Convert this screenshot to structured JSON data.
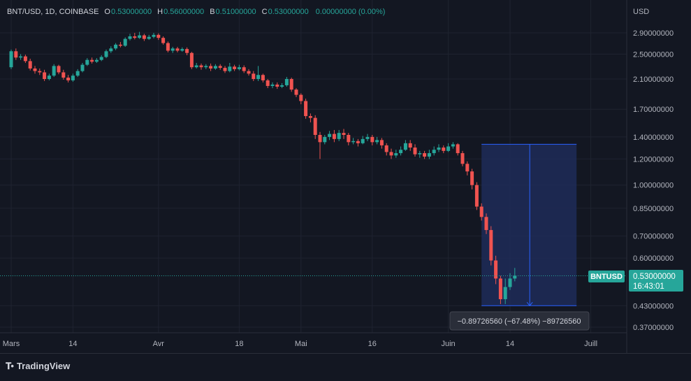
{
  "legend": {
    "symbol": "BNT/USD, 1D, COINBASE",
    "open_label": "O",
    "open": "0.53000000",
    "high_label": "H",
    "high": "0.56000000",
    "low_label": "B",
    "low": "0.51000000",
    "close_label": "C",
    "close": "0.53000000",
    "change": "0.00000000 (0.00%)"
  },
  "currency_label": "USD",
  "price_tag": {
    "symbol": "BNTUSD",
    "price": "0.53000000",
    "countdown": "16:43:01"
  },
  "measure_label": "−0.89726560 (−67.48%) −89726560",
  "branding": {
    "name": "TradingView"
  },
  "colors": {
    "background": "#131722",
    "up": "#26a69a",
    "down": "#ef5350",
    "grid": "#1f2330",
    "measure_fill": "#1e2c58",
    "measure_line": "#2962ff"
  },
  "chart_data": {
    "type": "candlestick",
    "yscale": "log",
    "ylim": [
      0.34,
      3.2
    ],
    "y_ticks": [
      "2.90000000",
      "2.50000000",
      "2.10000000",
      "1.70000000",
      "1.40000000",
      "1.20000000",
      "1.00000000",
      "0.85000000",
      "0.70000000",
      "0.60000000",
      "0.43000000",
      "0.37000000"
    ],
    "x_ticks": [
      {
        "label": "Mars",
        "date": "2022-03-01"
      },
      {
        "label": "14",
        "date": "2022-03-14"
      },
      {
        "label": "Avr",
        "date": "2022-04-01"
      },
      {
        "label": "18",
        "date": "2022-04-18"
      },
      {
        "label": "Mai",
        "date": "2022-05-01"
      },
      {
        "label": "16",
        "date": "2022-05-16"
      },
      {
        "label": "Juin",
        "date": "2022-06-01"
      },
      {
        "label": "14",
        "date": "2022-06-14"
      },
      {
        "label": "Juill",
        "date": "2022-07-01"
      }
    ],
    "start_date": "2022-03-01",
    "candles": [
      [
        2.28,
        2.55,
        2.58,
        2.25
      ],
      [
        2.55,
        2.44,
        2.6,
        2.4
      ],
      [
        2.44,
        2.46,
        2.5,
        2.4
      ],
      [
        2.46,
        2.38,
        2.49,
        2.35
      ],
      [
        2.38,
        2.26,
        2.42,
        2.23
      ],
      [
        2.26,
        2.22,
        2.3,
        2.18
      ],
      [
        2.22,
        2.2,
        2.26,
        2.16
      ],
      [
        2.2,
        2.1,
        2.24,
        2.07
      ],
      [
        2.1,
        2.15,
        2.18,
        2.08
      ],
      [
        2.15,
        2.3,
        2.33,
        2.13
      ],
      [
        2.3,
        2.2,
        2.32,
        2.17
      ],
      [
        2.2,
        2.12,
        2.24,
        2.09
      ],
      [
        2.12,
        2.08,
        2.16,
        2.05
      ],
      [
        2.08,
        2.15,
        2.18,
        2.06
      ],
      [
        2.15,
        2.22,
        2.25,
        2.13
      ],
      [
        2.22,
        2.32,
        2.35,
        2.2
      ],
      [
        2.32,
        2.4,
        2.43,
        2.3
      ],
      [
        2.4,
        2.37,
        2.44,
        2.34
      ],
      [
        2.37,
        2.4,
        2.43,
        2.35
      ],
      [
        2.4,
        2.45,
        2.48,
        2.38
      ],
      [
        2.45,
        2.55,
        2.58,
        2.43
      ],
      [
        2.55,
        2.6,
        2.64,
        2.52
      ],
      [
        2.6,
        2.67,
        2.7,
        2.57
      ],
      [
        2.67,
        2.65,
        2.72,
        2.62
      ],
      [
        2.65,
        2.78,
        2.81,
        2.63
      ],
      [
        2.78,
        2.83,
        2.88,
        2.75
      ],
      [
        2.83,
        2.8,
        2.9,
        2.77
      ],
      [
        2.8,
        2.85,
        2.92,
        2.78
      ],
      [
        2.85,
        2.78,
        2.88,
        2.74
      ],
      [
        2.78,
        2.82,
        2.86,
        2.76
      ],
      [
        2.82,
        2.86,
        2.9,
        2.79
      ],
      [
        2.86,
        2.8,
        2.89,
        2.76
      ],
      [
        2.8,
        2.7,
        2.83,
        2.67
      ],
      [
        2.7,
        2.56,
        2.73,
        2.53
      ],
      [
        2.56,
        2.6,
        2.63,
        2.52
      ],
      [
        2.6,
        2.56,
        2.63,
        2.53
      ],
      [
        2.56,
        2.59,
        2.62,
        2.54
      ],
      [
        2.59,
        2.52,
        2.62,
        2.48
      ],
      [
        2.52,
        2.28,
        2.54,
        2.25
      ],
      [
        2.28,
        2.31,
        2.35,
        2.26
      ],
      [
        2.31,
        2.28,
        2.34,
        2.24
      ],
      [
        2.28,
        2.3,
        2.33,
        2.25
      ],
      [
        2.3,
        2.26,
        2.34,
        2.22
      ],
      [
        2.26,
        2.3,
        2.33,
        2.24
      ],
      [
        2.3,
        2.27,
        2.33,
        2.24
      ],
      [
        2.27,
        2.22,
        2.3,
        2.19
      ],
      [
        2.22,
        2.29,
        2.35,
        2.2
      ],
      [
        2.29,
        2.25,
        2.32,
        2.22
      ],
      [
        2.25,
        2.28,
        2.32,
        2.23
      ],
      [
        2.28,
        2.22,
        2.31,
        2.19
      ],
      [
        2.22,
        2.18,
        2.25,
        2.15
      ],
      [
        2.18,
        2.1,
        2.22,
        2.07
      ],
      [
        2.1,
        2.16,
        2.3,
        2.07
      ],
      [
        2.16,
        2.08,
        2.18,
        2.05
      ],
      [
        2.08,
        2.0,
        2.1,
        1.97
      ],
      [
        2.0,
        2.02,
        2.05,
        1.97
      ],
      [
        2.02,
        1.99,
        2.05,
        1.96
      ],
      [
        1.99,
        2.01,
        2.04,
        1.97
      ],
      [
        2.01,
        2.1,
        2.13,
        1.99
      ],
      [
        2.1,
        1.95,
        2.12,
        1.92
      ],
      [
        1.95,
        1.88,
        1.97,
        1.85
      ],
      [
        1.88,
        1.8,
        1.9,
        1.76
      ],
      [
        1.8,
        1.62,
        1.83,
        1.59
      ],
      [
        1.62,
        1.6,
        1.65,
        1.55
      ],
      [
        1.6,
        1.42,
        1.63,
        1.38
      ],
      [
        1.42,
        1.35,
        1.45,
        1.2
      ],
      [
        1.35,
        1.4,
        1.42,
        1.33
      ],
      [
        1.4,
        1.43,
        1.46,
        1.37
      ],
      [
        1.43,
        1.38,
        1.47,
        1.35
      ],
      [
        1.38,
        1.44,
        1.47,
        1.36
      ],
      [
        1.44,
        1.42,
        1.48,
        1.38
      ],
      [
        1.42,
        1.35,
        1.44,
        1.32
      ],
      [
        1.35,
        1.36,
        1.39,
        1.33
      ],
      [
        1.36,
        1.34,
        1.38,
        1.31
      ],
      [
        1.34,
        1.38,
        1.41,
        1.33
      ],
      [
        1.38,
        1.4,
        1.43,
        1.36
      ],
      [
        1.4,
        1.35,
        1.42,
        1.32
      ],
      [
        1.35,
        1.37,
        1.4,
        1.33
      ],
      [
        1.37,
        1.32,
        1.39,
        1.29
      ],
      [
        1.32,
        1.26,
        1.34,
        1.23
      ],
      [
        1.26,
        1.23,
        1.29,
        1.2
      ],
      [
        1.23,
        1.25,
        1.28,
        1.21
      ],
      [
        1.25,
        1.28,
        1.31,
        1.23
      ],
      [
        1.28,
        1.34,
        1.37,
        1.27
      ],
      [
        1.34,
        1.3,
        1.37,
        1.27
      ],
      [
        1.3,
        1.24,
        1.33,
        1.22
      ],
      [
        1.24,
        1.25,
        1.27,
        1.21
      ],
      [
        1.25,
        1.22,
        1.27,
        1.2
      ],
      [
        1.22,
        1.25,
        1.28,
        1.2
      ],
      [
        1.25,
        1.28,
        1.31,
        1.23
      ],
      [
        1.28,
        1.3,
        1.33,
        1.26
      ],
      [
        1.3,
        1.27,
        1.32,
        1.25
      ],
      [
        1.27,
        1.31,
        1.34,
        1.26
      ],
      [
        1.31,
        1.33,
        1.35,
        1.29
      ],
      [
        1.33,
        1.25,
        1.34,
        1.23
      ],
      [
        1.25,
        1.16,
        1.27,
        1.14
      ],
      [
        1.16,
        1.1,
        1.18,
        1.07
      ],
      [
        1.1,
        1.0,
        1.12,
        0.97
      ],
      [
        1.0,
        0.86,
        1.02,
        0.84
      ],
      [
        0.86,
        0.8,
        0.88,
        0.78
      ],
      [
        0.8,
        0.73,
        0.82,
        0.71
      ],
      [
        0.73,
        0.59,
        0.75,
        0.57
      ],
      [
        0.59,
        0.52,
        0.61,
        0.5
      ],
      [
        0.52,
        0.45,
        0.53,
        0.435
      ],
      [
        0.45,
        0.49,
        0.52,
        0.435
      ],
      [
        0.49,
        0.52,
        0.54,
        0.48
      ],
      [
        0.52,
        0.53,
        0.56,
        0.51
      ]
    ],
    "measure": {
      "start_date": "2022-06-08",
      "end_date": "2022-06-28",
      "top_price": 1.33,
      "bottom_price": 0.43,
      "change": -0.8972656,
      "change_pct": -67.48
    },
    "last_price": 0.53
  }
}
